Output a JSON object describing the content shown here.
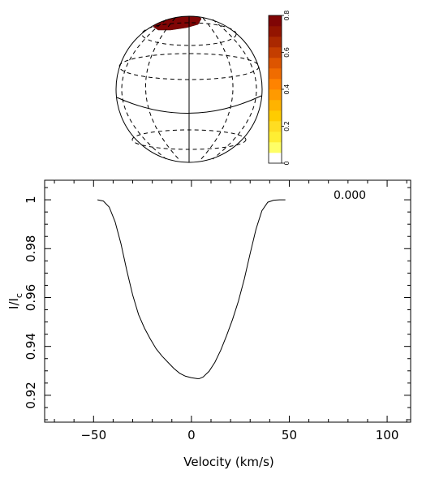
{
  "chart_data": [
    {
      "type": "heatmap",
      "description_role": "stellar surface map",
      "colorbar": {
        "range": [
          0,
          0.8
        ],
        "tick_labels": [
          "0",
          "0.2",
          "0.4",
          "0.6",
          "0.8"
        ],
        "colors": [
          "#ffffff",
          "#ffff66",
          "#ffee33",
          "#ffdd22",
          "#ffcc00",
          "#ffb300",
          "#ff9a00",
          "#ff8300",
          "#f06c00",
          "#dd5500",
          "#c43e00",
          "#aa2800",
          "#931400",
          "#800505"
        ]
      },
      "spot": {
        "latitude_region": "polar cap",
        "value": 0.8,
        "color": "#800505"
      }
    },
    {
      "type": "line",
      "xlabel": "Velocity (km/s)",
      "ylabel_main": "I/I",
      "ylabel_sub": "c",
      "xlim": [
        -75,
        112
      ],
      "ylim": [
        0.909,
        1.008
      ],
      "xticks": [
        -50,
        0,
        50,
        100
      ],
      "xtick_labels": [
        "−50",
        "0",
        "50",
        "100"
      ],
      "yticks": [
        0.92,
        0.94,
        0.96,
        0.98,
        1
      ],
      "ytick_labels": [
        "0.92",
        "0.94",
        "0.96",
        "0.98",
        "1"
      ],
      "phase_label": "0.000",
      "series": [
        {
          "x": [
            -48,
            -45,
            -42,
            -39,
            -36,
            -33,
            -30,
            -27,
            -24,
            -21,
            -18,
            -15,
            -12,
            -9,
            -6,
            -3,
            0,
            3,
            4,
            6,
            9,
            12,
            15,
            18,
            21,
            24,
            27,
            30,
            33,
            36,
            39,
            42,
            45,
            48
          ],
          "y": [
            1.0,
            0.9995,
            0.997,
            0.991,
            0.982,
            0.971,
            0.961,
            0.953,
            0.9475,
            0.943,
            0.939,
            0.936,
            0.9335,
            0.931,
            0.929,
            0.9278,
            0.9272,
            0.9268,
            0.9268,
            0.9275,
            0.9298,
            0.9335,
            0.9385,
            0.9445,
            0.951,
            0.9585,
            0.9675,
            0.978,
            0.988,
            0.9955,
            0.999,
            0.9998,
            1.0,
            1.0
          ]
        }
      ]
    }
  ]
}
